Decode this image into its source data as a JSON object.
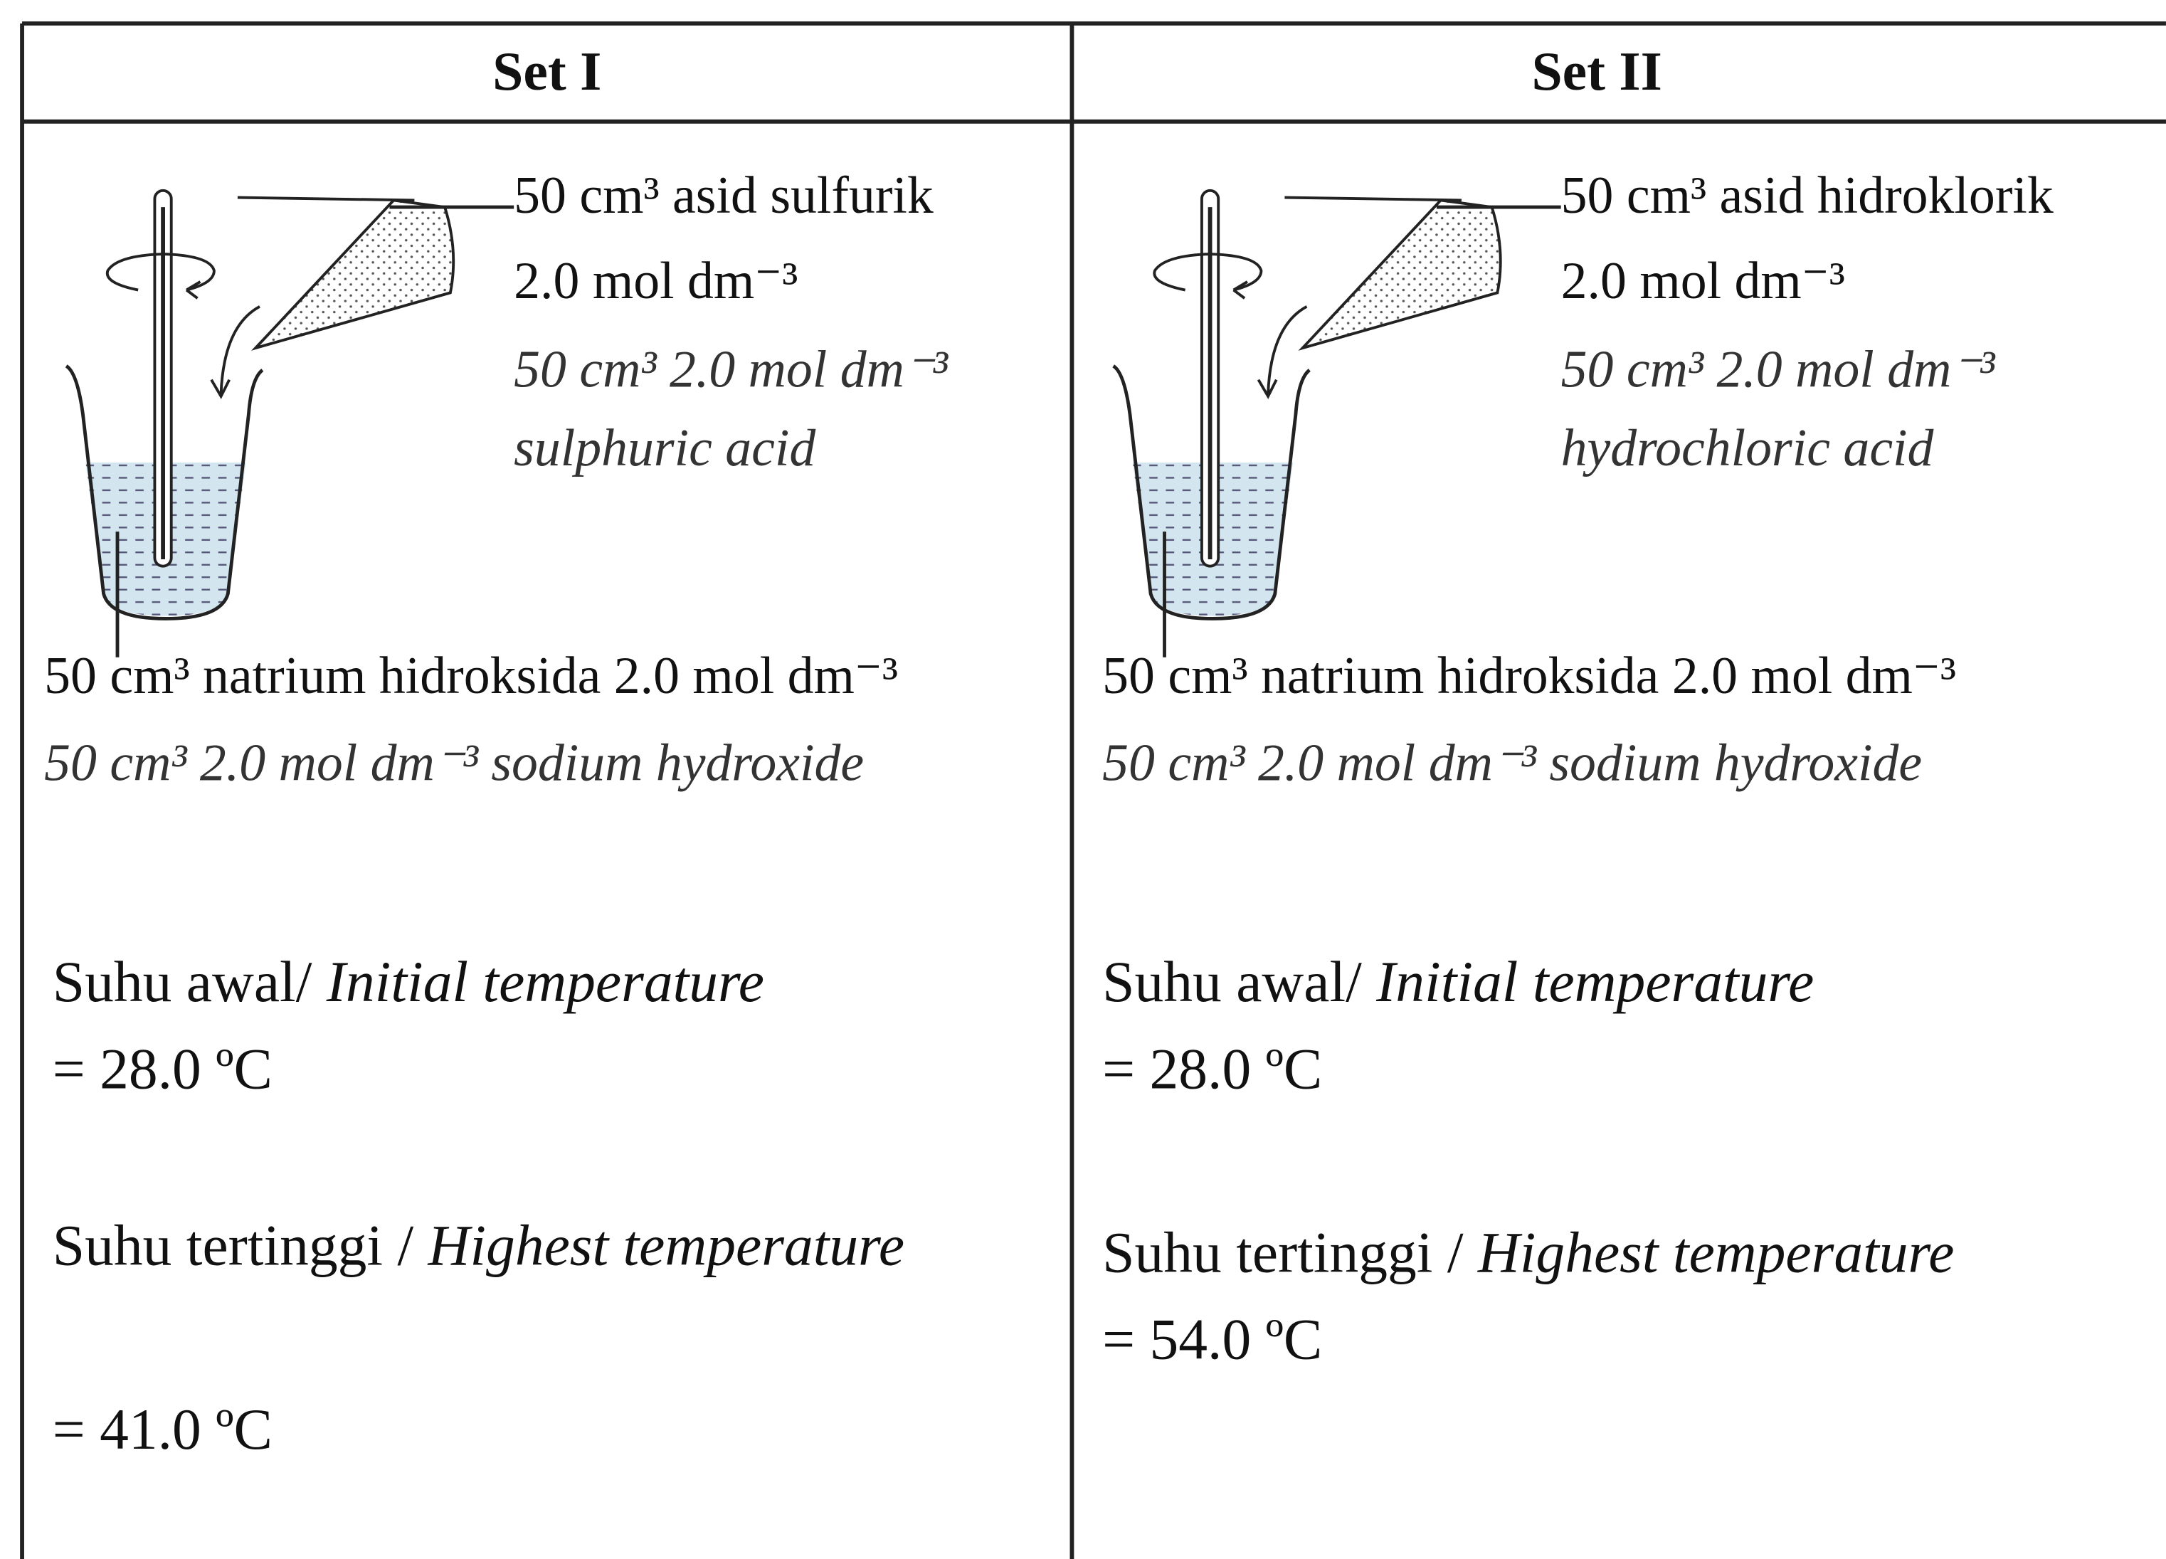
{
  "table": {
    "columns": [
      {
        "header": "Set I",
        "acid_label": [
          "50 cm³ asid sulfurik",
          "2.0 mol dm⁻³"
        ],
        "acid_label_en": [
          "50 cm³ 2.0 mol dm⁻³",
          "sulphuric acid"
        ],
        "base_label": "50 cm³ natrium hidroksida 2.0 mol dm⁻³",
        "base_label_en": "50 cm³ 2.0 mol dm⁻³ sodium hydroxide",
        "initial": {
          "label": "Suhu awal/",
          "label_en": "Initial temperature",
          "value": "= 28.0 ºC"
        },
        "highest": {
          "label": "Suhu tertinggi /",
          "label_en": "Highest temperature",
          "value": "= 41.0 ºC"
        }
      },
      {
        "header": "Set II",
        "acid_label": [
          "50 cm³ asid hidroklorik",
          "2.0 mol dm⁻³"
        ],
        "acid_label_en": [
          "50 cm³ 2.0 mol dm⁻³",
          "hydrochloric acid"
        ],
        "base_label": "50 cm³ natrium hidroksida 2.0 mol dm⁻³",
        "base_label_en": "50 cm³ 2.0 mol dm⁻³ sodium hydroxide",
        "initial": {
          "label": "Suhu awal/",
          "label_en": "Initial temperature",
          "value": "= 28.0 ºC"
        },
        "highest": {
          "label": "Suhu tertinggi /",
          "label_en": "Highest temperature",
          "value": "= 54.0 ºC"
        }
      }
    ]
  }
}
